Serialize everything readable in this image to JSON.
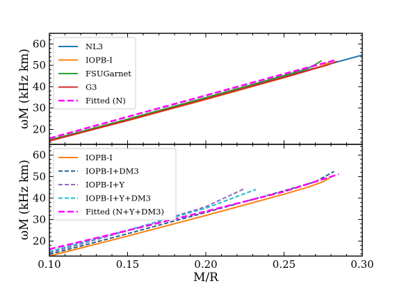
{
  "chart_data": [
    {
      "type": "line",
      "panel": "top",
      "xlabel": "M/R",
      "ylabel": "ωM (kHz km)",
      "xlim": [
        0.1,
        0.3
      ],
      "ylim": [
        13,
        65
      ],
      "xticks": [
        "0.10",
        "0.15",
        "0.20",
        "0.25",
        "0.30"
      ],
      "yticks": [
        "20",
        "30",
        "40",
        "50",
        "60"
      ],
      "legend_position": "top-left",
      "series": [
        {
          "name": "NL3",
          "color": "#1f77b4",
          "dash": "solid",
          "x": [
            0.1,
            0.15,
            0.2,
            0.25,
            0.27,
            0.285,
            0.3
          ],
          "y": [
            15.0,
            24.6,
            34.6,
            44.8,
            48.8,
            51.8,
            54.8
          ]
        },
        {
          "name": "IOPB-I",
          "color": "#ff7f0e",
          "dash": "solid",
          "x": [
            0.1,
            0.15,
            0.2,
            0.25,
            0.265,
            0.275,
            0.28
          ],
          "y": [
            14.6,
            24.1,
            34.0,
            44.2,
            47.4,
            50.0,
            51.8
          ]
        },
        {
          "name": "FSUGarnet",
          "color": "#2ca02c",
          "dash": "solid",
          "x": [
            0.1,
            0.15,
            0.2,
            0.25,
            0.265,
            0.27,
            0.274
          ],
          "y": [
            15.0,
            24.8,
            34.9,
            45.2,
            48.5,
            50.4,
            52.2
          ]
        },
        {
          "name": "G3",
          "color": "#d62728",
          "dash": "solid",
          "x": [
            0.1,
            0.15,
            0.2,
            0.25,
            0.265,
            0.278,
            0.284
          ],
          "y": [
            14.6,
            24.2,
            34.2,
            44.4,
            47.5,
            50.2,
            51.9
          ]
        },
        {
          "name": "Fitted (N)",
          "color": "#ff00ff",
          "dash": "dashed",
          "x": [
            0.1,
            0.15,
            0.2,
            0.25,
            0.283
          ],
          "y": [
            15.8,
            25.9,
            35.9,
            46.0,
            52.5
          ]
        }
      ]
    },
    {
      "type": "line",
      "panel": "bottom",
      "xlabel": "M/R",
      "ylabel": "ωM (kHz km)",
      "xlim": [
        0.1,
        0.3
      ],
      "ylim": [
        13,
        65
      ],
      "xticks": [
        "0.10",
        "0.15",
        "0.20",
        "0.25",
        "0.30"
      ],
      "yticks": [
        "20",
        "30",
        "40",
        "50",
        "60"
      ],
      "legend_position": "top-left",
      "series": [
        {
          "name": "IOPB-I",
          "color": "#ff7f0e",
          "dash": "solid",
          "x": [
            0.1,
            0.15,
            0.2,
            0.25,
            0.265,
            0.275,
            0.28
          ],
          "y": [
            13.0,
            22.3,
            31.9,
            41.8,
            45.0,
            47.6,
            49.8
          ]
        },
        {
          "name": "IOPB-I+DM3",
          "color": "#1f5f8b",
          "dash": "dashed",
          "x": [
            0.1,
            0.15,
            0.2,
            0.25,
            0.27,
            0.282
          ],
          "y": [
            13.8,
            23.4,
            33.3,
            43.4,
            47.6,
            52.4
          ]
        },
        {
          "name": "IOPB-I+Y",
          "color": "#9467bd",
          "dash": "dashed",
          "x": [
            0.1,
            0.15,
            0.2,
            0.225
          ],
          "y": [
            14.5,
            24.8,
            36.0,
            44.5
          ]
        },
        {
          "name": "IOPB-I+Y+DM3",
          "color": "#17becf",
          "dash": "dashed",
          "x": [
            0.1,
            0.15,
            0.2,
            0.232
          ],
          "y": [
            15.1,
            25.0,
            35.3,
            44.0
          ]
        },
        {
          "name": "Fitted (N+Y+DM3)",
          "color": "#ff00ff",
          "dash": "dashed",
          "x": [
            0.1,
            0.15,
            0.2,
            0.25,
            0.285
          ],
          "y": [
            16.2,
            24.9,
            33.8,
            43.0,
            51.1
          ]
        }
      ]
    }
  ]
}
